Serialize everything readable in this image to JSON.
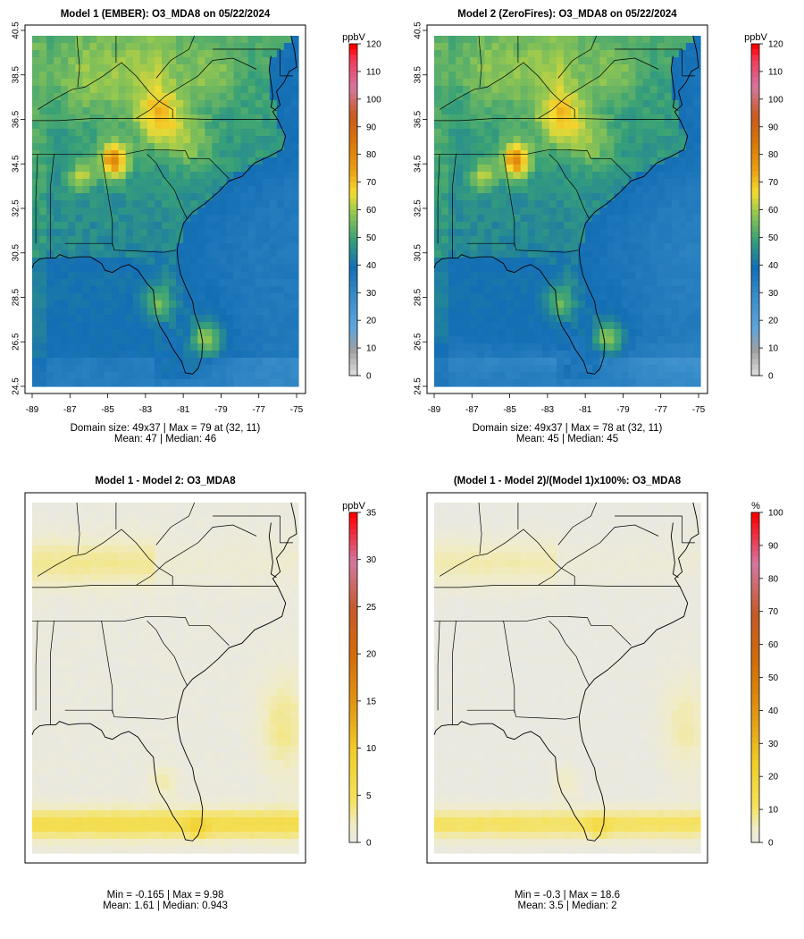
{
  "figure": {
    "panels": [
      {
        "title": "Model 1 (EMBER): O3_MDA8 on 05/22/2024",
        "variant": "conc",
        "summary_line1": "Domain size: 49x37 | Max = 79 at (32, 11)",
        "summary_line2": "Mean: 47 |  Median: 46",
        "colorbar": {
          "unit": "ppbV",
          "ticks": [
            "120",
            "110",
            "100",
            "90",
            "80",
            "70",
            "60",
            "50",
            "40",
            "30",
            "20",
            "10",
            "0"
          ]
        }
      },
      {
        "title": "Model 2 (ZeroFires): O3_MDA8 on 05/22/2024",
        "variant": "conc2",
        "summary_line1": "Domain size: 49x37 | Max = 78 at (32, 11)",
        "summary_line2": "Mean: 45 |  Median: 45",
        "colorbar": {
          "unit": "ppbV",
          "ticks": [
            "120",
            "110",
            "100",
            "90",
            "80",
            "70",
            "60",
            "50",
            "40",
            "30",
            "20",
            "10",
            "0"
          ]
        }
      },
      {
        "title": "Model 1 - Model 2: O3_MDA8",
        "variant": "diff",
        "summary_line1": "Min = -0.165 | Max = 9.98",
        "summary_line2": "Mean: 1.61 |  Median: 0.943",
        "colorbar": {
          "unit": "ppbV",
          "ticks": [
            "35",
            "30",
            "25",
            "20",
            "15",
            "10",
            "5",
            "0"
          ]
        }
      },
      {
        "title": "(Model 1 - Model 2)/(Model 1)x100%: O3_MDA8",
        "variant": "pct",
        "summary_line1": "Min = -0.3 | Max = 18.6",
        "summary_line2": "Mean: 3.5 |  Median: 2",
        "colorbar": {
          "unit": "%",
          "ticks": [
            "100",
            "90",
            "80",
            "70",
            "60",
            "50",
            "40",
            "30",
            "20",
            "10",
            "0"
          ]
        }
      }
    ]
  },
  "chart_data": [
    {
      "type": "heatmap",
      "title": "Model 1 (EMBER): O3_MDA8 on 05/22/2024",
      "grid_size": [
        49,
        37
      ],
      "x_ticks": [
        "-89",
        "-87",
        "-85",
        "-83",
        "-81",
        "-79",
        "-77",
        "-75"
      ],
      "y_ticks": [
        "24.5",
        "26.5",
        "28.5",
        "30.5",
        "32.5",
        "34.5",
        "36.5",
        "38.5",
        "40.5"
      ],
      "xlim": [
        -89,
        -75
      ],
      "ylim": [
        24.5,
        40.5
      ],
      "colorbar_unit": "ppbV",
      "colorbar_range": [
        0,
        120
      ],
      "max": 79,
      "max_location": [
        32,
        11
      ],
      "mean": 47,
      "median": 46,
      "hotspots": [
        {
          "lon": -84.9,
          "lat": 34.7,
          "value": 79
        },
        {
          "lon": -79.8,
          "lat": 26.7,
          "value": 70
        },
        {
          "lon": -82.4,
          "lat": 36.6,
          "value": 66
        },
        {
          "lon": -86.7,
          "lat": 34.0,
          "value": 64
        }
      ]
    },
    {
      "type": "heatmap",
      "title": "Model 2 (ZeroFires): O3_MDA8 on 05/22/2024",
      "grid_size": [
        49,
        37
      ],
      "x_ticks": [
        "-89",
        "-87",
        "-85",
        "-83",
        "-81",
        "-79",
        "-77",
        "-75"
      ],
      "y_ticks": [
        "24.5",
        "26.5",
        "28.5",
        "30.5",
        "32.5",
        "34.5",
        "36.5",
        "38.5",
        "40.5"
      ],
      "xlim": [
        -89,
        -75
      ],
      "ylim": [
        24.5,
        40.5
      ],
      "colorbar_unit": "ppbV",
      "colorbar_range": [
        0,
        120
      ],
      "max": 78,
      "max_location": [
        32,
        11
      ],
      "mean": 45,
      "median": 45
    },
    {
      "type": "heatmap",
      "title": "Model 1 - Model 2: O3_MDA8",
      "colorbar_unit": "ppbV",
      "colorbar_range": [
        0,
        35
      ],
      "min": -0.165,
      "max": 9.98,
      "mean": 1.61,
      "median": 0.943
    },
    {
      "type": "heatmap",
      "title": "(Model 1 - Model 2)/(Model 1)x100%: O3_MDA8",
      "colorbar_unit": "%",
      "colorbar_range": [
        0,
        100
      ],
      "min": -0.3,
      "max": 18.6,
      "mean": 3.5,
      "median": 2
    }
  ]
}
